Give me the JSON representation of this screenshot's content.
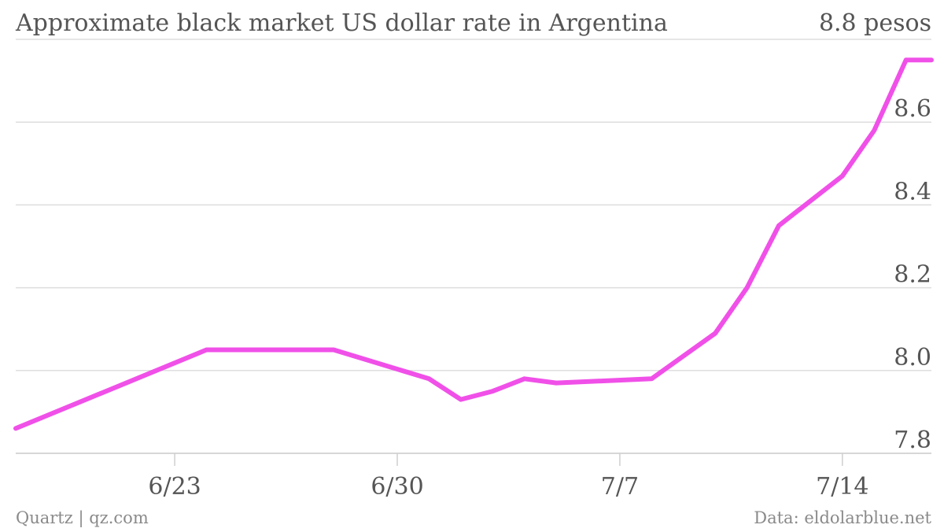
{
  "chart_data": {
    "type": "line",
    "title": "Approximate black market US dollar rate in Argentina",
    "top_label": "8.8 pesos",
    "y_tick_labels": [
      "7.8",
      "8.0",
      "8.2",
      "8.4",
      "8.6"
    ],
    "y_ticks": [
      7.8,
      8.0,
      8.2,
      8.4,
      8.6
    ],
    "ylim": [
      7.8,
      8.8
    ],
    "x_tick_labels": [
      "6/23",
      "6/30",
      "7/7",
      "7/14"
    ],
    "x_ticks": [
      23,
      30,
      37,
      44
    ],
    "xlim": [
      18,
      46.8
    ],
    "grid": true,
    "series": [
      {
        "color": "#f050e8",
        "x": [
          18,
          24,
          28,
          31,
          32,
          33,
          34,
          35,
          38,
          40,
          41,
          42,
          44,
          45,
          46,
          46.8
        ],
        "y": [
          7.86,
          8.05,
          8.05,
          7.98,
          7.93,
          7.95,
          7.98,
          7.97,
          7.98,
          8.09,
          8.2,
          8.35,
          8.47,
          8.58,
          8.75,
          8.75
        ]
      }
    ]
  },
  "footer": {
    "source_left": "Quartz | qz.com",
    "source_right": "Data: eldolarblue.net"
  }
}
